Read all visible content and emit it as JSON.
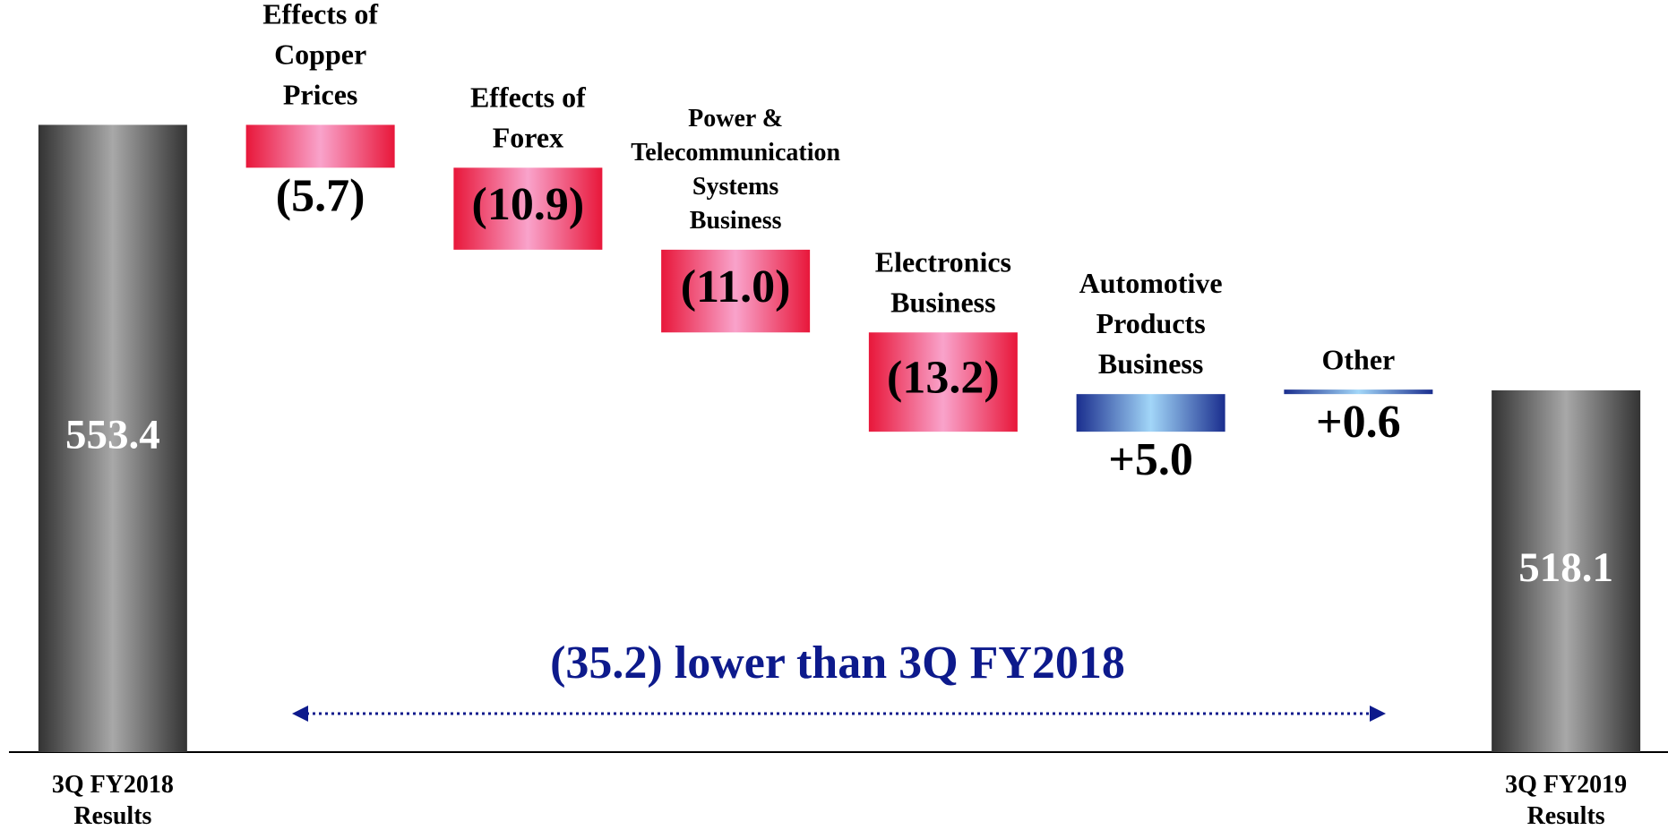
{
  "chart_data": {
    "type": "waterfall",
    "categories": [
      "3Q FY2018\nResults",
      "Effects of\nCopper\nPrices",
      "Effects of\nForex",
      "Power &\nTelecommunication\nSystems\nBusiness",
      "Electronics\nBusiness",
      "Automotive\nProducts\nBusiness",
      "Other",
      "3Q FY2019\nResults"
    ],
    "values": [
      553.4,
      -5.7,
      -10.9,
      -11.0,
      -13.2,
      5.0,
      0.6,
      518.1
    ],
    "value_labels": [
      "553.4",
      "(5.7)",
      "(10.9)",
      "(11.0)",
      "(13.2)",
      "+5.0",
      "+0.6",
      "518.1"
    ],
    "measure": [
      "absolute",
      "relative",
      "relative",
      "relative",
      "relative",
      "relative",
      "relative",
      "absolute"
    ],
    "colors": {
      "total": [
        "#333333",
        "#a8a8a8"
      ],
      "decrease": [
        "#e8173a",
        "#f9a3cb"
      ],
      "increase": [
        "#1a2e8e",
        "#a2d6f8"
      ]
    },
    "ylim": [
      470,
      570
    ],
    "annotation": "(35.2) lower than 3Q FY2018",
    "annotation_color": "#0d1a8c"
  }
}
